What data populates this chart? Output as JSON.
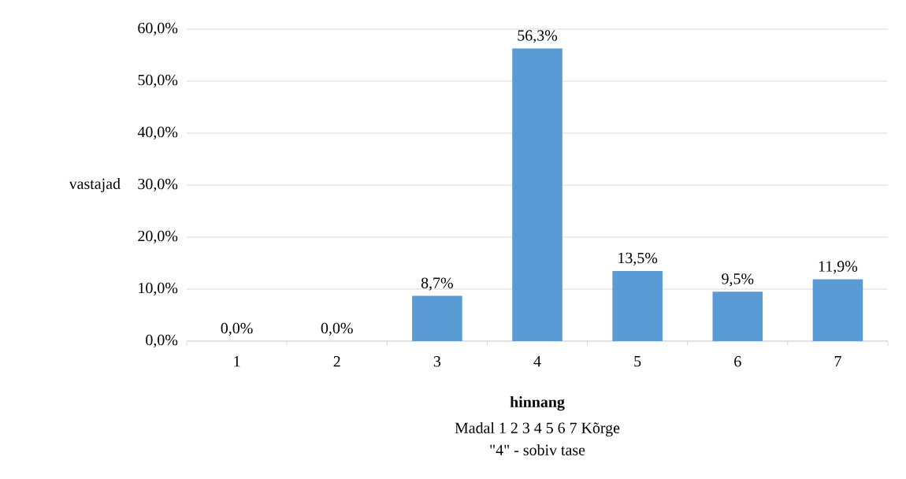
{
  "chart_data": {
    "type": "bar",
    "xlabel": "hinnang",
    "ylabel": "vastajad",
    "categories": [
      "1",
      "2",
      "3",
      "4",
      "5",
      "6",
      "7"
    ],
    "values": [
      0,
      0,
      8.7,
      56.3,
      13.5,
      9.5,
      11.9
    ],
    "value_labels": [
      "0,0%",
      "0,0%",
      "8,7%",
      "56,3%",
      "13,5%",
      "9,5%",
      "11,9%"
    ],
    "color": "#5b9bd5",
    "ylim": [
      0,
      60
    ],
    "yticks": [
      {
        "value": 0,
        "label": "0,0%"
      },
      {
        "value": 10,
        "label": "10,0%"
      },
      {
        "value": 20,
        "label": "20,0%"
      },
      {
        "value": 30,
        "label": "30,0%"
      },
      {
        "value": 40,
        "label": "40,0%"
      },
      {
        "value": 50,
        "label": "50,0%"
      },
      {
        "value": 60,
        "label": "60,0%"
      }
    ],
    "grid": "y",
    "annotations": [
      "Madal 1 2 3 4 5 6 7 Kõrge",
      "\"4\" - sobiv tase"
    ]
  }
}
